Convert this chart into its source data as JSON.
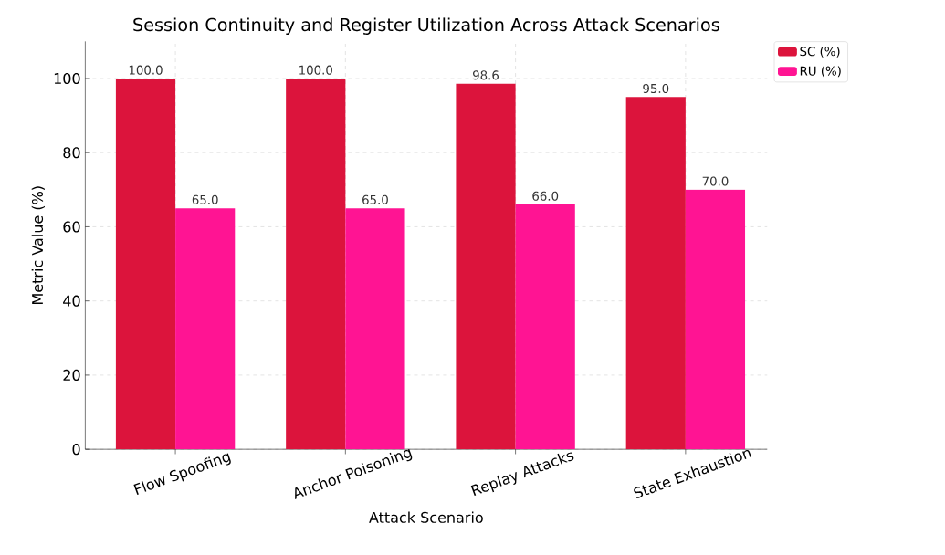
{
  "chart_data": {
    "type": "bar",
    "title": "Session Continuity and Register Utilization Across Attack Scenarios",
    "xlabel": "Attack Scenario",
    "ylabel": "Metric Value (%)",
    "categories": [
      "Flow Spoofing",
      "Anchor Poisoning",
      "Replay Attacks",
      "State Exhaustion"
    ],
    "series": [
      {
        "name": "SC (%)",
        "color": "#dc143c",
        "values": [
          100.0,
          100.0,
          98.6,
          95.0
        ],
        "value_labels": [
          "100.0",
          "100.0",
          "98.6",
          "95.0"
        ]
      },
      {
        "name": "RU (%)",
        "color": "#ff1493",
        "values": [
          65.0,
          65.0,
          66.0,
          70.0
        ],
        "value_labels": [
          "65.0",
          "65.0",
          "66.0",
          "70.0"
        ]
      }
    ],
    "ylim": [
      0,
      110
    ],
    "yticks": [
      0,
      20,
      40,
      60,
      80,
      100
    ],
    "grid": true,
    "legend": "top right"
  }
}
